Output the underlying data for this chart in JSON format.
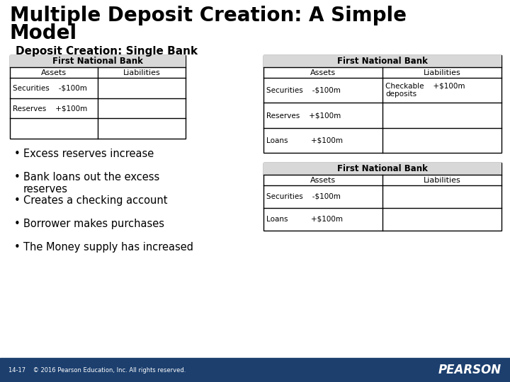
{
  "title_line1": "Multiple Deposit Creation: A Simple",
  "title_line2": "Model",
  "subtitle": "Deposit Creation: Single Bank",
  "bg_color": "#ffffff",
  "footer_bg": "#1c3f6e",
  "footer_text": "14-17    © 2016 Pearson Education, Inc. All rights reserved.",
  "pearson_text": "PEARSON",
  "table1": {
    "header": "First National Bank",
    "col_headers": [
      "Assets",
      "Liabilities"
    ],
    "rows": [
      [
        "Securities    -$100m",
        ""
      ],
      [
        "Reserves    +$100m",
        ""
      ],
      [
        "",
        ""
      ]
    ]
  },
  "table2": {
    "header": "First National Bank",
    "col_headers": [
      "Assets",
      "Liabilities"
    ],
    "rows": [
      [
        "Securities    -$100m",
        "Checkable    +$100m\ndeposits"
      ],
      [
        "Reserves    +$100m",
        ""
      ],
      [
        "Loans          +$100m",
        ""
      ]
    ]
  },
  "table3": {
    "header": "First National Bank",
    "col_headers": [
      "Assets",
      "Liabilities"
    ],
    "rows": [
      [
        "Securities    -$100m",
        ""
      ],
      [
        "Loans          +$100m",
        ""
      ]
    ]
  },
  "bullets": [
    "Excess reserves increase",
    "Bank loans out the excess\nreserves",
    "Creates a checking account",
    "Borrower makes purchases",
    "The Money supply has increased"
  ]
}
